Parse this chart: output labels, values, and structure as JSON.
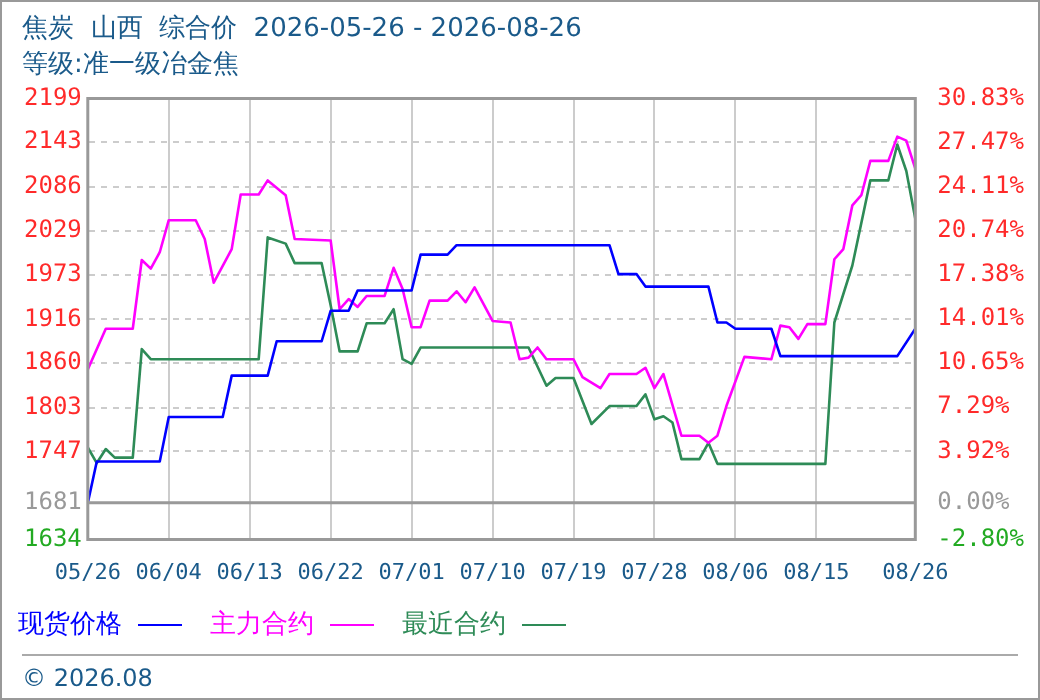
{
  "chart_data": {
    "type": "line",
    "title": "焦炭  山西  综合价  2026-05-26 - 2026-08-26",
    "subtitle": "等级:准一级冶金焦",
    "annotations": [
      "© 2026.08"
    ],
    "xlim": [
      "--05-26",
      "--08-26"
    ],
    "xticks": [
      {
        "value": "--05-26",
        "label": "05/26"
      },
      {
        "value": "--06-04",
        "label": "06/04"
      },
      {
        "value": "--06-13",
        "label": "06/13"
      },
      {
        "value": "--06-22",
        "label": "06/22"
      },
      {
        "value": "--07-01",
        "label": "07/01"
      },
      {
        "value": "--07-10",
        "label": "07/10"
      },
      {
        "value": "--07-19",
        "label": "07/19"
      },
      {
        "value": "--07-28",
        "label": "07/28"
      },
      {
        "value": "--08-06",
        "label": "08/06"
      },
      {
        "value": "--08-15",
        "label": "08/15"
      },
      {
        "value": "--08-26",
        "label": "08/26"
      }
    ],
    "ylim": [
      1634,
      2199
    ],
    "yticks": [
      1634,
      1681,
      1747,
      1803,
      1860,
      1916,
      1973,
      2029,
      2086,
      2143,
      2199
    ],
    "y2lim": [
      -2.8,
      30.83
    ],
    "y2ticks": [
      {
        "value": -2.8,
        "label": "-2.80%"
      },
      {
        "value": 0,
        "label": "0.00%"
      },
      {
        "value": 3.92,
        "label": "3.92%"
      },
      {
        "value": 7.29,
        "label": "7.29%"
      },
      {
        "value": 10.65,
        "label": "10.65%"
      },
      {
        "value": 14.01,
        "label": "14.01%"
      },
      {
        "value": 17.38,
        "label": "17.38%"
      },
      {
        "value": 20.74,
        "label": "20.74%"
      },
      {
        "value": 24.11,
        "label": "24.11%"
      },
      {
        "value": 27.47,
        "label": "27.47%"
      },
      {
        "value": 30.83,
        "label": "30.83%"
      }
    ],
    "ref_lines": [
      {
        "axis": "y2",
        "value": 0,
        "color": "#999999"
      }
    ],
    "grid": true,
    "legend": "bottom",
    "marker": "none",
    "line_style": "solid",
    "series": [
      {
        "name": "现货价格",
        "color": "#0000ff",
        "x": [
          "--05-26",
          "--05-27",
          "--06-03",
          "--06-04",
          "--06-10",
          "--06-11",
          "--06-15",
          "--06-16",
          "--06-21",
          "--06-22",
          "--06-24",
          "--06-25",
          "--07-01",
          "--07-02",
          "--07-05",
          "--07-06",
          "--07-23",
          "--07-24",
          "--07-26",
          "--07-27",
          "--08-03",
          "--08-04",
          "--08-05",
          "--08-06",
          "--08-10",
          "--08-11",
          "--08-24",
          "--08-26"
        ],
        "values": [
          1681,
          1734,
          1734,
          1791,
          1791,
          1844,
          1844,
          1888,
          1888,
          1927,
          1927,
          1953,
          1953,
          1999,
          1999,
          2011,
          2011,
          1974,
          1974,
          1958,
          1958,
          1912,
          1912,
          1904,
          1904,
          1869,
          1869,
          1904
        ]
      },
      {
        "name": "主力合约",
        "color": "#ff00ff",
        "x": [
          "--05-26",
          "--05-28",
          "--05-31",
          "--06-01",
          "--06-02",
          "--06-03",
          "--06-04",
          "--06-07",
          "--06-08",
          "--06-09",
          "--06-11",
          "--06-12",
          "--06-14",
          "--06-15",
          "--06-17",
          "--06-18",
          "--06-22",
          "--06-23",
          "--06-24",
          "--06-25",
          "--06-26",
          "--06-28",
          "--06-29",
          "--06-30",
          "--07-01",
          "--07-02",
          "--07-03",
          "--07-05",
          "--07-06",
          "--07-07",
          "--07-08",
          "--07-10",
          "--07-12",
          "--07-13",
          "--07-14",
          "--07-15",
          "--07-16",
          "--07-19",
          "--07-20",
          "--07-22",
          "--07-23",
          "--07-26",
          "--07-27",
          "--07-28",
          "--07-29",
          "--07-31",
          "--08-02",
          "--08-03",
          "--08-04",
          "--08-05",
          "--08-07",
          "--08-10",
          "--08-11",
          "--08-12",
          "--08-13",
          "--08-14",
          "--08-16",
          "--08-17",
          "--08-18",
          "--08-19",
          "--08-20",
          "--08-21",
          "--08-23",
          "--08-24",
          "--08-25",
          "--08-26"
        ],
        "values": [
          1852,
          1904,
          1904,
          1992,
          1981,
          2002,
          2043,
          2043,
          2019,
          1963,
          2006,
          2076,
          2076,
          2094,
          2075,
          2019,
          2017,
          1929,
          1942,
          1932,
          1946,
          1946,
          1982,
          1955,
          1906,
          1906,
          1940,
          1940,
          1952,
          1938,
          1957,
          1914,
          1912,
          1865,
          1867,
          1880,
          1865,
          1865,
          1842,
          1828,
          1846,
          1846,
          1854,
          1828,
          1846,
          1767,
          1767,
          1758,
          1767,
          1805,
          1868,
          1865,
          1908,
          1906,
          1891,
          1910,
          1910,
          1993,
          2006,
          2062,
          2075,
          2119,
          2119,
          2150,
          2145,
          2109
        ]
      },
      {
        "name": "最近合约",
        "color": "#2e8b57",
        "x": [
          "--05-26",
          "--05-27",
          "--05-28",
          "--05-29",
          "--05-31",
          "--06-01",
          "--06-02",
          "--06-14",
          "--06-15",
          "--06-17",
          "--06-18",
          "--06-21",
          "--06-22",
          "--06-23",
          "--06-25",
          "--06-26",
          "--06-28",
          "--06-29",
          "--06-30",
          "--07-01",
          "--07-02",
          "--07-14",
          "--07-16",
          "--07-17",
          "--07-19",
          "--07-21",
          "--07-23",
          "--07-26",
          "--07-27",
          "--07-28",
          "--07-29",
          "--07-30",
          "--07-31",
          "--08-02",
          "--08-03",
          "--08-04",
          "--08-16",
          "--08-17",
          "--08-19",
          "--08-21",
          "--08-23",
          "--08-24",
          "--08-25",
          "--08-26"
        ],
        "values": [
          1752,
          1732,
          1750,
          1739,
          1739,
          1878,
          1865,
          1865,
          2021,
          2013,
          1988,
          1988,
          1934,
          1875,
          1875,
          1911,
          1911,
          1929,
          1865,
          1859,
          1880,
          1880,
          1831,
          1841,
          1841,
          1782,
          1805,
          1805,
          1820,
          1788,
          1792,
          1784,
          1737,
          1737,
          1758,
          1731,
          1731,
          1912,
          1985,
          2094,
          2094,
          2140,
          2106,
          2045
        ]
      }
    ]
  }
}
